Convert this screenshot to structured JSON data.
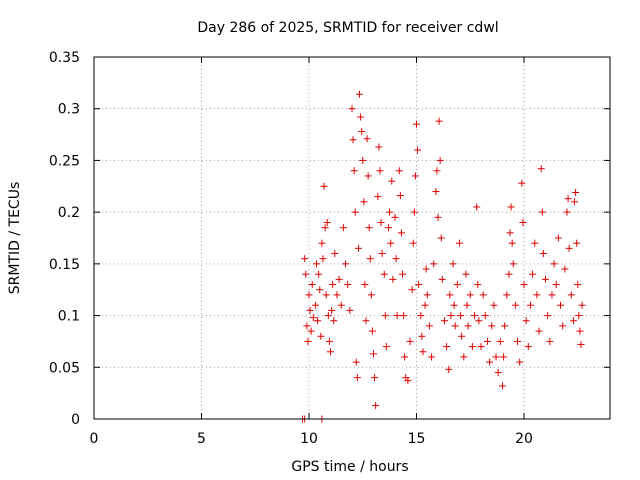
{
  "chart_data": {
    "type": "scatter",
    "title": "Day 286 of 2025, SRMTID for receiver cdwl",
    "xlabel": "GPS time / hours",
    "ylabel": "SRMTID / TECUs",
    "xlim": [
      0,
      24
    ],
    "ylim": [
      0,
      0.35
    ],
    "xticks": [
      0,
      5,
      10,
      15,
      20
    ],
    "xtick_labels": [
      "0",
      "5",
      "10",
      "15",
      "20"
    ],
    "yticks": [
      0,
      0.05,
      0.1,
      0.15,
      0.2,
      0.25,
      0.3,
      0.35
    ],
    "ytick_labels": [
      "0",
      "0.05",
      "0.1",
      "0.15",
      "0.2",
      "0.25",
      "0.3",
      "0.35"
    ],
    "grid": true,
    "marker": "plus",
    "series": [
      {
        "name": "SRMTID",
        "color": "#dd0000",
        "points": [
          [
            9.7,
            0.0
          ],
          [
            9.8,
            0.0
          ],
          [
            10.6,
            0.0
          ],
          [
            9.8,
            0.155
          ],
          [
            9.85,
            0.14
          ],
          [
            9.9,
            0.09
          ],
          [
            9.95,
            0.075
          ],
          [
            10.0,
            0.12
          ],
          [
            10.05,
            0.105
          ],
          [
            10.1,
            0.085
          ],
          [
            10.15,
            0.13
          ],
          [
            10.2,
            0.098
          ],
          [
            10.3,
            0.11
          ],
          [
            10.35,
            0.15
          ],
          [
            10.4,
            0.095
          ],
          [
            10.45,
            0.14
          ],
          [
            10.5,
            0.125
          ],
          [
            10.55,
            0.08
          ],
          [
            10.6,
            0.17
          ],
          [
            10.65,
            0.155
          ],
          [
            10.7,
            0.225
          ],
          [
            10.75,
            0.185
          ],
          [
            10.8,
            0.12
          ],
          [
            10.85,
            0.19
          ],
          [
            10.9,
            0.1
          ],
          [
            10.95,
            0.075
          ],
          [
            11.0,
            0.065
          ],
          [
            11.05,
            0.105
          ],
          [
            11.1,
            0.13
          ],
          [
            11.15,
            0.095
          ],
          [
            11.2,
            0.16
          ],
          [
            11.3,
            0.12
          ],
          [
            11.4,
            0.135
          ],
          [
            11.5,
            0.11
          ],
          [
            11.6,
            0.185
          ],
          [
            11.7,
            0.15
          ],
          [
            11.8,
            0.13
          ],
          [
            11.9,
            0.105
          ],
          [
            12.0,
            0.3
          ],
          [
            12.05,
            0.27
          ],
          [
            12.1,
            0.24
          ],
          [
            12.15,
            0.2
          ],
          [
            12.2,
            0.055
          ],
          [
            12.25,
            0.04
          ],
          [
            12.3,
            0.165
          ],
          [
            12.35,
            0.314
          ],
          [
            12.4,
            0.292
          ],
          [
            12.45,
            0.278
          ],
          [
            12.5,
            0.25
          ],
          [
            12.55,
            0.21
          ],
          [
            12.6,
            0.13
          ],
          [
            12.65,
            0.095
          ],
          [
            12.7,
            0.271
          ],
          [
            12.75,
            0.235
          ],
          [
            12.8,
            0.185
          ],
          [
            12.85,
            0.155
          ],
          [
            12.9,
            0.12
          ],
          [
            12.95,
            0.085
          ],
          [
            13.0,
            0.063
          ],
          [
            13.05,
            0.04
          ],
          [
            13.1,
            0.013
          ],
          [
            13.2,
            0.215
          ],
          [
            13.25,
            0.263
          ],
          [
            13.3,
            0.24
          ],
          [
            13.35,
            0.19
          ],
          [
            13.4,
            0.16
          ],
          [
            13.5,
            0.14
          ],
          [
            13.55,
            0.1
          ],
          [
            13.6,
            0.07
          ],
          [
            13.7,
            0.185
          ],
          [
            13.75,
            0.2
          ],
          [
            13.8,
            0.17
          ],
          [
            13.85,
            0.23
          ],
          [
            13.9,
            0.135
          ],
          [
            14.0,
            0.195
          ],
          [
            14.05,
            0.155
          ],
          [
            14.1,
            0.1
          ],
          [
            14.2,
            0.24
          ],
          [
            14.25,
            0.216
          ],
          [
            14.3,
            0.18
          ],
          [
            14.35,
            0.14
          ],
          [
            14.4,
            0.1
          ],
          [
            14.45,
            0.06
          ],
          [
            14.5,
            0.04
          ],
          [
            14.6,
            0.037
          ],
          [
            14.7,
            0.075
          ],
          [
            14.8,
            0.125
          ],
          [
            14.85,
            0.17
          ],
          [
            14.9,
            0.2
          ],
          [
            14.95,
            0.235
          ],
          [
            15.0,
            0.285
          ],
          [
            15.05,
            0.26
          ],
          [
            15.1,
            0.13
          ],
          [
            15.2,
            0.1
          ],
          [
            15.25,
            0.08
          ],
          [
            15.3,
            0.065
          ],
          [
            15.4,
            0.11
          ],
          [
            15.45,
            0.145
          ],
          [
            15.5,
            0.12
          ],
          [
            15.6,
            0.09
          ],
          [
            15.7,
            0.06
          ],
          [
            15.8,
            0.15
          ],
          [
            15.9,
            0.22
          ],
          [
            15.95,
            0.24
          ],
          [
            16.0,
            0.195
          ],
          [
            16.05,
            0.288
          ],
          [
            16.1,
            0.25
          ],
          [
            16.15,
            0.175
          ],
          [
            16.2,
            0.135
          ],
          [
            16.3,
            0.095
          ],
          [
            16.4,
            0.07
          ],
          [
            16.5,
            0.048
          ],
          [
            16.55,
            0.12
          ],
          [
            16.6,
            0.1
          ],
          [
            16.7,
            0.15
          ],
          [
            16.75,
            0.11
          ],
          [
            16.8,
            0.09
          ],
          [
            16.9,
            0.13
          ],
          [
            17.0,
            0.17
          ],
          [
            17.05,
            0.1
          ],
          [
            17.1,
            0.08
          ],
          [
            17.2,
            0.06
          ],
          [
            17.3,
            0.14
          ],
          [
            17.35,
            0.11
          ],
          [
            17.4,
            0.09
          ],
          [
            17.5,
            0.12
          ],
          [
            17.6,
            0.07
          ],
          [
            17.7,
            0.1
          ],
          [
            17.8,
            0.205
          ],
          [
            17.85,
            0.13
          ],
          [
            17.9,
            0.095
          ],
          [
            18.0,
            0.07
          ],
          [
            18.1,
            0.12
          ],
          [
            18.2,
            0.1
          ],
          [
            18.3,
            0.075
          ],
          [
            18.4,
            0.055
          ],
          [
            18.5,
            0.09
          ],
          [
            18.6,
            0.11
          ],
          [
            18.7,
            0.06
          ],
          [
            18.8,
            0.045
          ],
          [
            18.9,
            0.075
          ],
          [
            19.0,
            0.032
          ],
          [
            19.05,
            0.06
          ],
          [
            19.1,
            0.09
          ],
          [
            19.2,
            0.12
          ],
          [
            19.3,
            0.14
          ],
          [
            19.35,
            0.18
          ],
          [
            19.4,
            0.205
          ],
          [
            19.45,
            0.17
          ],
          [
            19.5,
            0.15
          ],
          [
            19.6,
            0.11
          ],
          [
            19.7,
            0.075
          ],
          [
            19.8,
            0.055
          ],
          [
            19.9,
            0.228
          ],
          [
            19.95,
            0.19
          ],
          [
            20.0,
            0.13
          ],
          [
            20.1,
            0.095
          ],
          [
            20.2,
            0.07
          ],
          [
            20.3,
            0.11
          ],
          [
            20.4,
            0.14
          ],
          [
            20.5,
            0.17
          ],
          [
            20.6,
            0.12
          ],
          [
            20.7,
            0.085
          ],
          [
            20.8,
            0.242
          ],
          [
            20.85,
            0.2
          ],
          [
            20.9,
            0.16
          ],
          [
            21.0,
            0.135
          ],
          [
            21.1,
            0.1
          ],
          [
            21.2,
            0.075
          ],
          [
            21.3,
            0.12
          ],
          [
            21.4,
            0.15
          ],
          [
            21.5,
            0.13
          ],
          [
            21.6,
            0.175
          ],
          [
            21.7,
            0.11
          ],
          [
            21.8,
            0.09
          ],
          [
            21.9,
            0.145
          ],
          [
            22.0,
            0.2
          ],
          [
            22.05,
            0.213
          ],
          [
            22.1,
            0.165
          ],
          [
            22.2,
            0.12
          ],
          [
            22.3,
            0.095
          ],
          [
            22.35,
            0.21
          ],
          [
            22.4,
            0.219
          ],
          [
            22.45,
            0.17
          ],
          [
            22.5,
            0.13
          ],
          [
            22.55,
            0.1
          ],
          [
            22.6,
            0.085
          ],
          [
            22.65,
            0.072
          ],
          [
            22.7,
            0.11
          ]
        ]
      }
    ]
  }
}
